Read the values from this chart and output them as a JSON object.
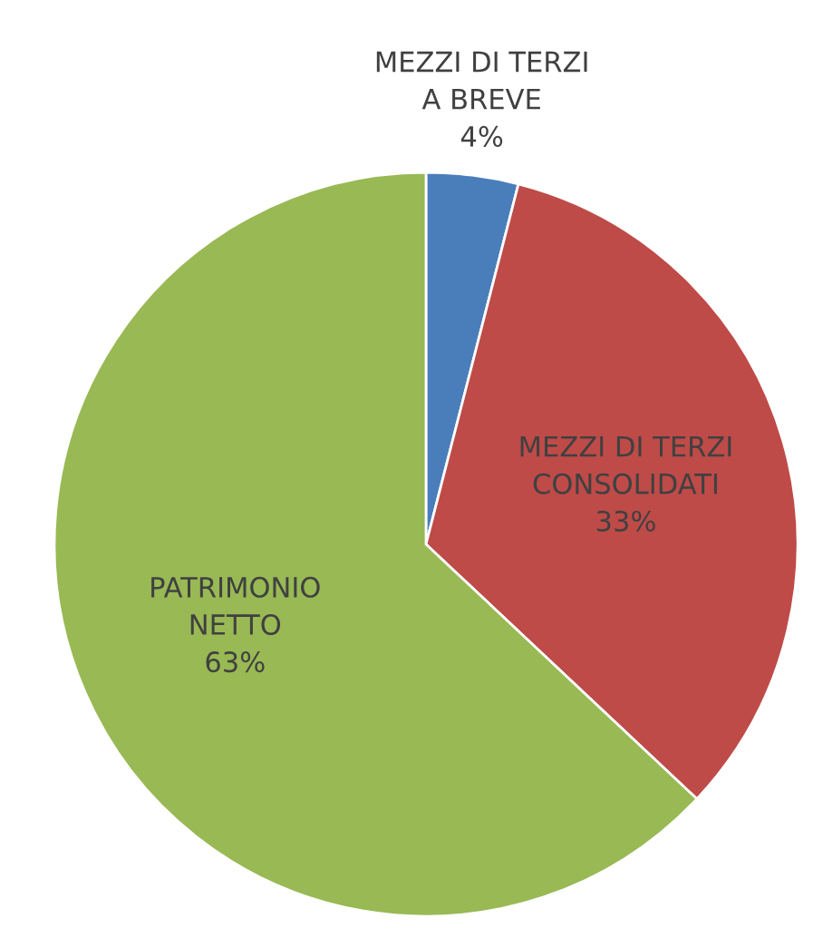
{
  "chart_data": {
    "type": "pie",
    "categories": [
      "MEZZI DI TERZI\nA BREVE",
      "MEZZI DI TERZI\nCONSOLIDATI",
      "PATRIMONIO\nNETTO"
    ],
    "values": [
      4,
      33,
      63
    ],
    "value_labels": [
      "4%",
      "33%",
      "63%"
    ],
    "colors": [
      "#4a7ebb",
      "#be4b48",
      "#98b954"
    ],
    "legend": false
  }
}
